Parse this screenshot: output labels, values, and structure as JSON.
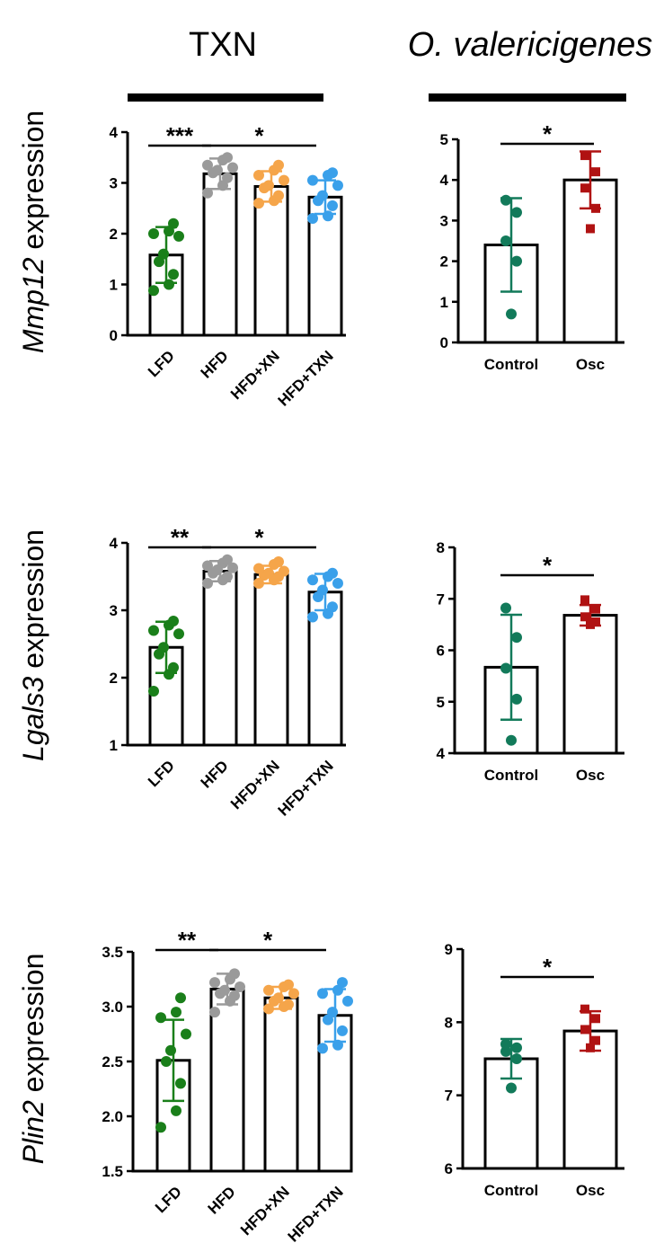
{
  "header": {
    "left_title": "TXN",
    "right_title": "O. valericigenes"
  },
  "colors": {
    "LFD": "#1a7f1a",
    "HFD": "#9a9a9a",
    "HFD+XN": "#f5a54a",
    "HFD+TXN": "#3aa0ea",
    "Control": "#127a5a",
    "Osc": "#b01212"
  },
  "chart_data": [
    {
      "id": "mmp12-txn",
      "type": "bar",
      "gene": "Mmp12",
      "ylabel_suffix": " expression",
      "categories": [
        "LFD",
        "HFD",
        "HFD+XN",
        "HFD+TXN"
      ],
      "values": [
        1.58,
        3.18,
        2.93,
        2.72
      ],
      "errors": [
        0.55,
        0.3,
        0.3,
        0.33
      ],
      "points": [
        [
          0.88,
          1.0,
          1.2,
          1.45,
          1.6,
          1.95,
          2.0,
          2.05,
          2.2
        ],
        [
          2.8,
          2.95,
          3.1,
          3.2,
          3.25,
          3.3,
          3.35,
          3.45,
          3.5
        ],
        [
          2.6,
          2.65,
          2.75,
          2.9,
          2.95,
          3.05,
          3.15,
          3.25,
          3.35
        ],
        [
          2.3,
          2.35,
          2.55,
          2.65,
          2.75,
          2.95,
          3.05,
          3.15,
          3.2
        ]
      ],
      "ylim": [
        0,
        4
      ],
      "yticks": [
        "0",
        "1",
        "2",
        "3",
        "4"
      ],
      "significance": [
        {
          "from": 0,
          "to": 1,
          "label": "***"
        },
        {
          "from": 1,
          "to": 3,
          "label": "*"
        }
      ]
    },
    {
      "id": "mmp12-osc",
      "type": "bar",
      "categories": [
        "Control",
        "Osc"
      ],
      "values": [
        2.4,
        4.0
      ],
      "errors": [
        1.15,
        0.7
      ],
      "points": [
        [
          0.7,
          2.0,
          2.5,
          3.2,
          3.5
        ],
        [
          2.8,
          3.3,
          3.8,
          4.2,
          4.6
        ]
      ],
      "ylim": [
        0,
        5
      ],
      "yticks": [
        "0",
        "1",
        "2",
        "3",
        "4",
        "5"
      ],
      "significance": [
        {
          "from": 0,
          "to": 1,
          "label": "*"
        }
      ]
    },
    {
      "id": "lgals3-txn",
      "type": "bar",
      "gene": "Lgals3",
      "ylabel_suffix": " expression",
      "categories": [
        "LFD",
        "HFD",
        "HFD+XN",
        "HFD+TXN"
      ],
      "values": [
        2.45,
        3.58,
        3.53,
        3.27
      ],
      "errors": [
        0.38,
        0.15,
        0.13,
        0.27
      ],
      "points": [
        [
          1.8,
          2.05,
          2.15,
          2.35,
          2.45,
          2.65,
          2.7,
          2.78,
          2.84
        ],
        [
          3.4,
          3.45,
          3.5,
          3.55,
          3.6,
          3.63,
          3.66,
          3.7,
          3.75
        ],
        [
          3.4,
          3.45,
          3.5,
          3.52,
          3.55,
          3.58,
          3.62,
          3.68,
          3.72
        ],
        [
          2.9,
          2.95,
          3.05,
          3.2,
          3.3,
          3.4,
          3.45,
          3.5,
          3.55
        ]
      ],
      "ylim": [
        1,
        4
      ],
      "yticks": [
        "1",
        "2",
        "3",
        "4"
      ],
      "significance": [
        {
          "from": 0,
          "to": 1,
          "label": "**"
        },
        {
          "from": 1,
          "to": 3,
          "label": "*"
        }
      ]
    },
    {
      "id": "lgals3-osc",
      "type": "bar",
      "categories": [
        "Control",
        "Osc"
      ],
      "values": [
        5.67,
        6.68
      ],
      "errors": [
        1.02,
        0.2
      ],
      "points": [
        [
          4.25,
          5.05,
          5.65,
          6.25,
          6.82
        ],
        [
          6.5,
          6.55,
          6.65,
          6.8,
          6.98
        ]
      ],
      "ylim": [
        4,
        8
      ],
      "yticks": [
        "4",
        "5",
        "6",
        "7",
        "8"
      ],
      "significance": [
        {
          "from": 0,
          "to": 1,
          "label": "*"
        }
      ]
    },
    {
      "id": "plin2-txn",
      "type": "bar",
      "gene": "Plin2",
      "ylabel_suffix": " expression",
      "categories": [
        "LFD",
        "HFD",
        "HFD+XN",
        "HFD+TXN"
      ],
      "values": [
        2.51,
        3.16,
        3.08,
        2.92
      ],
      "errors": [
        0.37,
        0.14,
        0.1,
        0.24
      ],
      "points": [
        [
          1.9,
          2.05,
          2.3,
          2.5,
          2.6,
          2.75,
          2.9,
          2.95,
          3.08
        ],
        [
          2.95,
          3.05,
          3.1,
          3.12,
          3.15,
          3.18,
          3.22,
          3.25,
          3.3
        ],
        [
          2.98,
          3.0,
          3.02,
          3.05,
          3.08,
          3.12,
          3.15,
          3.18,
          3.2
        ],
        [
          2.62,
          2.65,
          2.78,
          2.88,
          2.95,
          3.05,
          3.12,
          3.15,
          3.22
        ]
      ],
      "ylim": [
        1.5,
        3.5
      ],
      "yticks": [
        "1.5",
        "2.0",
        "2.5",
        "3.0",
        "3.5"
      ],
      "significance": [
        {
          "from": 0,
          "to": 1,
          "label": "**"
        },
        {
          "from": 1,
          "to": 3,
          "label": "*"
        }
      ]
    },
    {
      "id": "plin2-osc",
      "type": "bar",
      "categories": [
        "Control",
        "Osc"
      ],
      "values": [
        7.5,
        7.88
      ],
      "errors": [
        0.27,
        0.27
      ],
      "points": [
        [
          7.1,
          7.5,
          7.6,
          7.65,
          7.7
        ],
        [
          7.65,
          7.75,
          7.9,
          8.05,
          8.18
        ]
      ],
      "ylim": [
        6,
        9
      ],
      "yticks": [
        "6",
        "7",
        "8",
        "9"
      ],
      "significance": [
        {
          "from": 0,
          "to": 1,
          "label": "*"
        }
      ]
    }
  ]
}
